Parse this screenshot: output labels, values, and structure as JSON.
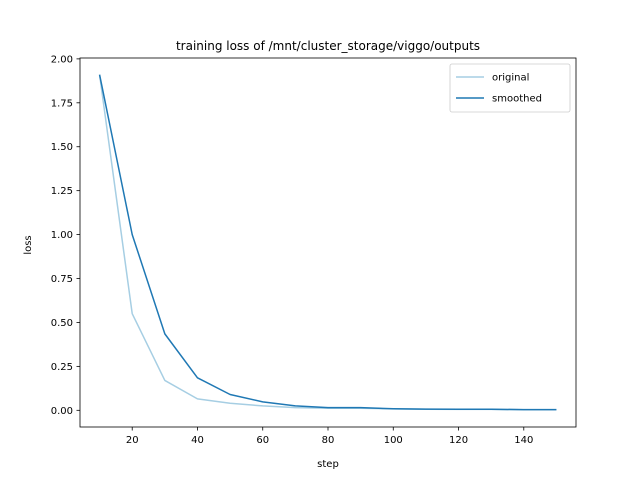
{
  "chart_data": {
    "type": "line",
    "title": "training loss of /mnt/cluster_storage/viggo/outputs",
    "xlabel": "step",
    "ylabel": "loss",
    "xlim": [
      4,
      156
    ],
    "ylim": [
      -0.095,
      2.005
    ],
    "xticks": [
      20,
      40,
      60,
      80,
      100,
      120,
      140
    ],
    "yticks": [
      0.0,
      0.25,
      0.5,
      0.75,
      1.0,
      1.25,
      1.5,
      1.75,
      2.0
    ],
    "xtick_labels": [
      "20",
      "40",
      "60",
      "80",
      "100",
      "120",
      "140"
    ],
    "ytick_labels": [
      "0.00",
      "0.25",
      "0.50",
      "0.75",
      "1.00",
      "1.25",
      "1.50",
      "1.75",
      "2.00"
    ],
    "legend_position": "top-right",
    "grid": false,
    "x": [
      10,
      20,
      30,
      40,
      50,
      60,
      70,
      80,
      90,
      100,
      110,
      120,
      130,
      140,
      150
    ],
    "series": [
      {
        "name": "original",
        "color": "#a6cee3",
        "values": [
          1.91,
          0.55,
          0.17,
          0.065,
          0.04,
          0.025,
          0.015,
          0.012,
          0.012,
          0.008,
          0.006,
          0.005,
          0.005,
          0.003,
          0.003
        ]
      },
      {
        "name": "smoothed",
        "color": "#1f78b4",
        "values": [
          1.91,
          1.0,
          0.435,
          0.185,
          0.09,
          0.048,
          0.025,
          0.015,
          0.015,
          0.009,
          0.007,
          0.006,
          0.006,
          0.004,
          0.004
        ]
      }
    ]
  }
}
